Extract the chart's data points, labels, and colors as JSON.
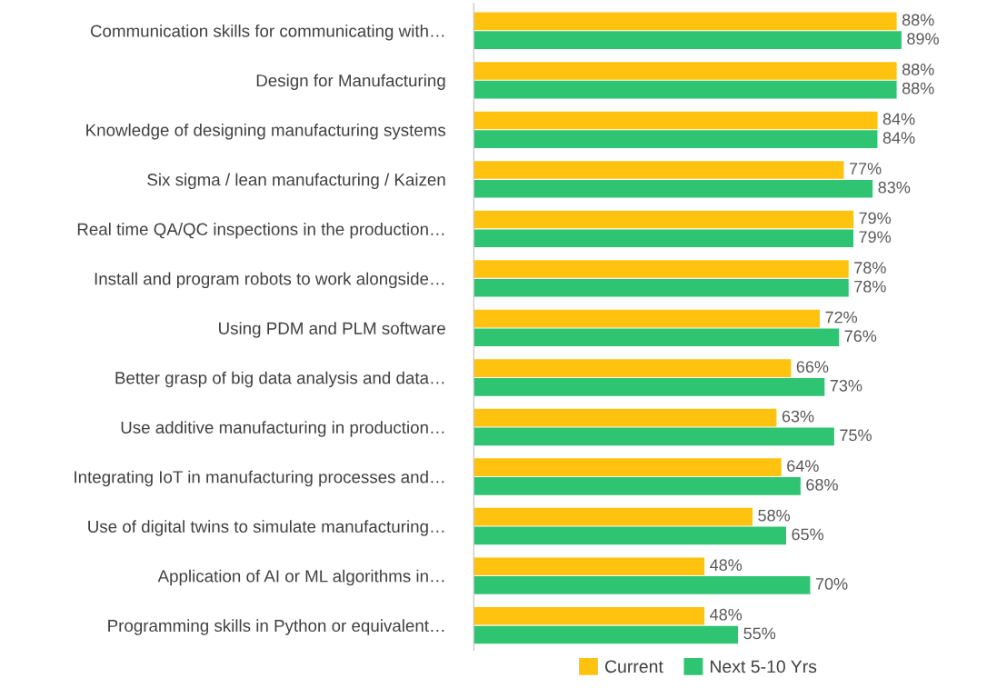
{
  "chart_data": {
    "type": "bar",
    "orientation": "horizontal",
    "tick_labels": "y",
    "grid": false,
    "legend": "bottom",
    "categories": [
      "Communication skills for communicating with…",
      "Design for Manufacturing",
      "Knowledge of designing manufacturing systems",
      "Six sigma / lean manufacturing / Kaizen",
      "Real time QA/QC inspections in the production…",
      "Install and program robots to work alongside…",
      "Using PDM and PLM software",
      "Better grasp of big data analysis and data…",
      "Use additive manufacturing in production…",
      "Integrating IoT in manufacturing processes and…",
      "Use of digital twins to simulate manufacturing…",
      "Application of AI or ML algorithms in…",
      "Programming skills in Python or equivalent…"
    ],
    "series": [
      {
        "name": "Current",
        "color": "#ffc20e",
        "values": [
          88,
          88,
          84,
          77,
          79,
          78,
          72,
          66,
          63,
          64,
          58,
          48,
          48
        ],
        "value_labels": [
          "88%",
          "88%",
          "84%",
          "77%",
          "79%",
          "78%",
          "72%",
          "66%",
          "63%",
          "64%",
          "58%",
          "48%",
          "48%"
        ]
      },
      {
        "name": "Next 5-10 Yrs",
        "color": "#2ec471",
        "values": [
          89,
          88,
          84,
          83,
          79,
          78,
          76,
          73,
          75,
          68,
          65,
          70,
          55
        ],
        "value_labels": [
          "89%",
          "88%",
          "84%",
          "83%",
          "79%",
          "78%",
          "76%",
          "73%",
          "75%",
          "68%",
          "65%",
          "70%",
          "55%"
        ]
      }
    ]
  }
}
